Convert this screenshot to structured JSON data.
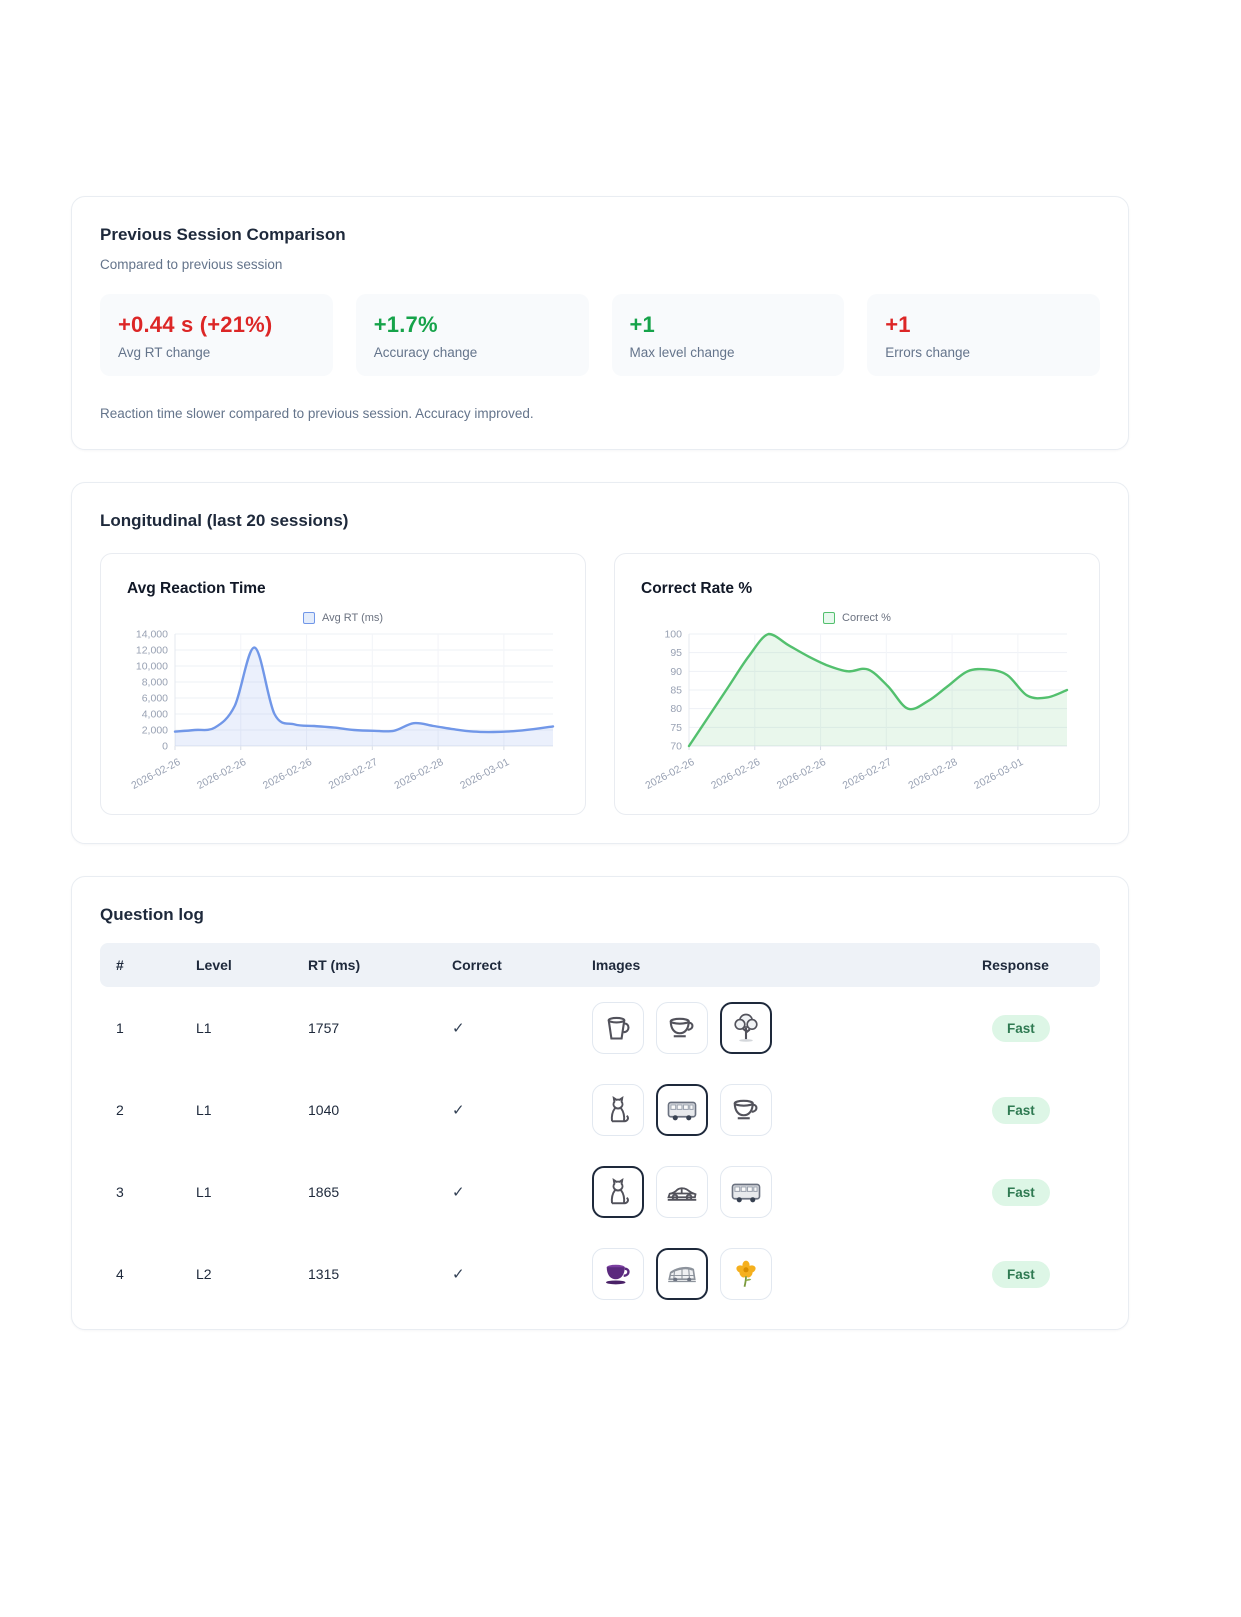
{
  "comparison": {
    "title": "Previous Session Comparison",
    "subtitle": "Compared to previous session",
    "stats": [
      {
        "value": "+0.44 s (+21%)",
        "label": "Avg RT change",
        "color": "#dc2626"
      },
      {
        "value": "+1.7%",
        "label": "Accuracy change",
        "color": "#16a34a"
      },
      {
        "value": "+1",
        "label": "Max level change",
        "color": "#16a34a"
      },
      {
        "value": "+1",
        "label": "Errors change",
        "color": "#dc2626"
      }
    ],
    "note": "Reaction time slower compared to previous session. Accuracy improved."
  },
  "longitudinal": {
    "title": "Longitudinal (last 20 sessions)"
  },
  "chart_data": [
    {
      "type": "area",
      "title": "Avg Reaction Time",
      "legend": "Avg RT (ms)",
      "x_tick_labels": [
        "2026-02-26",
        "2026-02-26",
        "2026-02-26",
        "2026-02-27",
        "2026-02-28",
        "2026-03-01"
      ],
      "values": [
        1800,
        2000,
        2300,
        5000,
        12300,
        4000,
        2700,
        2500,
        2300,
        2000,
        1900,
        1900,
        2850,
        2500,
        2100,
        1800,
        1750,
        1850,
        2100,
        2450
      ],
      "ylim": [
        0,
        14000
      ],
      "ytick_step": 2000,
      "y_ticks": [
        "0",
        "2,000",
        "4,000",
        "6,000",
        "8,000",
        "10,000",
        "12,000",
        "14,000"
      ],
      "grid": true,
      "legend_position": "top",
      "line_color": "#7197e8",
      "fill_color": "rgba(113,151,232,0.14)",
      "swatch_fill": "#e3ecfb",
      "thousands": true
    },
    {
      "type": "area",
      "title": "Correct Rate %",
      "legend": "Correct %",
      "x_tick_labels": [
        "2026-02-26",
        "2026-02-26",
        "2026-02-26",
        "2026-02-27",
        "2026-02-28",
        "2026-03-01"
      ],
      "values": [
        70,
        78,
        86,
        94,
        100,
        97,
        94,
        91.5,
        90,
        90.5,
        86,
        80,
        82,
        86,
        90,
        90.5,
        89,
        83.5,
        83,
        85
      ],
      "ylim": [
        70,
        100
      ],
      "ytick_step": 5,
      "y_ticks": [
        "70",
        "75",
        "80",
        "85",
        "90",
        "95",
        "100"
      ],
      "grid": true,
      "legend_position": "top",
      "line_color": "#53c06e",
      "fill_color": "rgba(83,192,110,0.13)",
      "swatch_fill": "#e7f8ed",
      "thousands": false
    }
  ],
  "question_log": {
    "title": "Question log",
    "columns": [
      "#",
      "Level",
      "RT (ms)",
      "Correct",
      "Images",
      "Response"
    ],
    "rows": [
      {
        "num": "1",
        "level": "L1",
        "rt": "1757",
        "correct": "✓",
        "images": [
          {
            "name": "mug",
            "selected": false
          },
          {
            "name": "teacup",
            "selected": false
          },
          {
            "name": "tree",
            "selected": true
          }
        ],
        "response": "Fast"
      },
      {
        "num": "2",
        "level": "L1",
        "rt": "1040",
        "correct": "✓",
        "images": [
          {
            "name": "cat",
            "selected": false
          },
          {
            "name": "bus",
            "selected": true
          },
          {
            "name": "teacup",
            "selected": false
          }
        ],
        "response": "Fast"
      },
      {
        "num": "3",
        "level": "L1",
        "rt": "1865",
        "correct": "✓",
        "images": [
          {
            "name": "cat",
            "selected": true
          },
          {
            "name": "car",
            "selected": false
          },
          {
            "name": "bus",
            "selected": false
          }
        ],
        "response": "Fast"
      },
      {
        "num": "4",
        "level": "L2",
        "rt": "1315",
        "correct": "✓",
        "images": [
          {
            "name": "purple-cup",
            "selected": false
          },
          {
            "name": "coach",
            "selected": true
          },
          {
            "name": "flower",
            "selected": false
          }
        ],
        "response": "Fast"
      }
    ]
  }
}
